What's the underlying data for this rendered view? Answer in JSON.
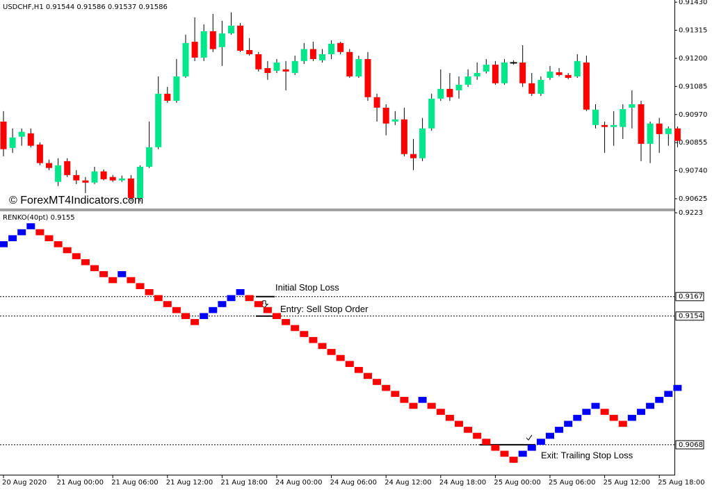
{
  "chart_data": [
    {
      "type": "candlestick",
      "title": "USDCHF,H1  0.91544 0.91586 0.91537 0.91586",
      "watermark": "© ForexMT4Indicators.com",
      "up_color": "#00e68a",
      "down_color": "#ff0000",
      "doji_color": "#000000",
      "grid": false,
      "ylim": [
        0.90585,
        0.91439
      ],
      "yticks": [
        {
          "value": 0.9143,
          "label": "0.91430"
        },
        0.91315,
        {
          "value": 0.912,
          "label": "0.91200"
        },
        0.91085,
        {
          "value": 0.9097,
          "label": "0.90970"
        },
        0.90855,
        {
          "value": 0.9074,
          "label": "0.90740"
        },
        0.90625
      ],
      "categories": [
        "20 Aug 2020",
        null,
        null,
        null,
        null,
        null,
        "21 Aug 00:00",
        null,
        null,
        null,
        null,
        null,
        "21 Aug 06:00",
        null,
        null,
        null,
        null,
        null,
        "21 Aug 12:00",
        null,
        null,
        null,
        null,
        null,
        "21 Aug 18:00",
        null,
        null,
        null,
        null,
        null,
        "24 Aug 00:00",
        null,
        null,
        null,
        null,
        null,
        "24 Aug 06:00",
        null,
        null,
        null,
        null,
        null,
        "24 Aug 12:00",
        null,
        null,
        null,
        null,
        null,
        "24 Aug 18:00",
        null,
        null,
        null,
        null,
        null,
        "25 Aug 00:00",
        null,
        null,
        null,
        null,
        null,
        "25 Aug 06:00",
        null,
        null,
        null,
        null,
        null,
        "25 Aug 12:00",
        null,
        null,
        null,
        null,
        null,
        "25 Aug 18:00",
        null,
        null
      ],
      "open": [
        0.90941,
        0.90833,
        0.90879,
        0.90893,
        0.90847,
        0.90771,
        0.90694,
        0.90779,
        0.90722,
        0.907,
        0.90691,
        0.90737,
        0.90714,
        0.907,
        0.90708,
        0.90628,
        0.90756,
        0.90836,
        0.91055,
        0.91026,
        0.91126,
        0.91268,
        0.91203,
        0.91311,
        0.91246,
        0.91302,
        0.91334,
        0.91234,
        0.91217,
        0.9116,
        0.91149,
        0.91155,
        0.9114,
        0.91189,
        0.91238,
        0.91192,
        0.91217,
        0.91263,
        0.91226,
        0.91126,
        0.91197,
        0.91041,
        0.90998,
        0.90941,
        0.9095,
        0.90808,
        0.90791,
        0.90913,
        0.91035,
        0.91075,
        0.91069,
        0.91092,
        0.91126,
        0.91146,
        0.91174,
        0.91098,
        0.91183,
        0.91183,
        0.91098,
        0.91055,
        0.9112,
        0.91143,
        0.91132,
        0.91126,
        0.91183,
        0.90927,
        0.90927,
        0.90919,
        0.90919,
        0.90998,
        0.91012,
        0.9085,
        0.90933,
        0.9089,
        0.90913
      ],
      "high": [
        0.90984,
        0.90913,
        0.90913,
        0.90913,
        0.90856,
        0.90785,
        0.90791,
        0.90791,
        0.90742,
        0.90714,
        0.90756,
        0.90745,
        0.90722,
        0.9072,
        0.90722,
        0.90762,
        0.90941,
        0.91126,
        0.91083,
        0.91197,
        0.91297,
        0.91368,
        0.91339,
        0.91382,
        0.91354,
        0.91388,
        0.91345,
        0.91283,
        0.91226,
        0.91189,
        0.91197,
        0.91189,
        0.91211,
        0.91263,
        0.91268,
        0.91238,
        0.91274,
        0.91268,
        0.91238,
        0.91211,
        0.91226,
        0.91055,
        0.91012,
        0.90984,
        0.90998,
        0.9087,
        0.90956,
        0.91055,
        0.91155,
        0.9114,
        0.91126,
        0.91155,
        0.91183,
        0.91197,
        0.91189,
        0.91197,
        0.91192,
        0.91254,
        0.9114,
        0.91126,
        0.91169,
        0.9116,
        0.9114,
        0.91217,
        0.91211,
        0.91012,
        0.90941,
        0.90984,
        0.91012,
        0.91069,
        0.91026,
        0.90941,
        0.90956,
        0.90921,
        0.90921
      ],
      "low": [
        0.90799,
        0.90813,
        0.90842,
        0.90836,
        0.90762,
        0.90742,
        0.90677,
        0.90714,
        0.90685,
        0.90648,
        0.90685,
        0.907,
        0.90694,
        0.90694,
        0.90614,
        0.90614,
        0.90751,
        0.90828,
        0.91018,
        0.91018,
        0.9112,
        0.91189,
        0.91189,
        0.91226,
        0.91169,
        0.91297,
        0.91226,
        0.91211,
        0.91146,
        0.91112,
        0.9114,
        0.91069,
        0.91132,
        0.91177,
        0.91189,
        0.91183,
        0.91197,
        0.91217,
        0.9112,
        0.9112,
        0.91026,
        0.90941,
        0.90885,
        0.90927,
        0.90799,
        0.90742,
        0.90779,
        0.90904,
        0.91026,
        0.91026,
        0.91035,
        0.91083,
        0.91112,
        0.91138,
        0.91092,
        0.91092,
        0.91174,
        0.91083,
        0.91046,
        0.91046,
        0.91112,
        0.91126,
        0.91115,
        0.9112,
        0.90984,
        0.90913,
        0.90813,
        0.90842,
        0.9087,
        0.90913,
        0.90779,
        0.90771,
        0.90813,
        0.90842,
        0.90836
      ],
      "close": [
        0.90828,
        0.90876,
        0.90899,
        0.90842,
        0.90771,
        0.90751,
        0.90762,
        0.90722,
        0.907,
        0.90691,
        0.90737,
        0.90705,
        0.907,
        0.90708,
        0.90628,
        0.90756,
        0.90836,
        0.91055,
        0.91026,
        0.91126,
        0.91263,
        0.91203,
        0.91311,
        0.91238,
        0.91302,
        0.91334,
        0.91231,
        0.91217,
        0.91155,
        0.9114,
        0.91183,
        0.91146,
        0.91189,
        0.91238,
        0.91197,
        0.91217,
        0.9126,
        0.91226,
        0.91126,
        0.91197,
        0.91041,
        0.90998,
        0.90933,
        0.9095,
        0.90808,
        0.90791,
        0.90913,
        0.91035,
        0.91075,
        0.91041,
        0.91092,
        0.91126,
        0.9114,
        0.91174,
        0.91098,
        0.91183,
        0.91183,
        0.91098,
        0.91055,
        0.91112,
        0.91146,
        0.91132,
        0.9112,
        0.91189,
        0.9099,
        0.9099,
        0.90919,
        0.90927,
        0.90992,
        0.91012,
        0.9085,
        0.90933,
        0.9089,
        0.90913,
        0.90862
      ]
    },
    {
      "type": "renko",
      "title": "RENKO(40pt) 0.9155",
      "brick_size": 0.0004,
      "up_color": "#0000ff",
      "down_color": "#ff0000",
      "ylim": [
        0.9048,
        0.9224
      ],
      "yticks": [
        0.9223
      ],
      "hlines": [
        0.9167,
        0.9154,
        0.9068
      ],
      "hline_notes": [
        "Initial Stop Loss",
        "Entry: Sell Stop Order",
        "Exit: Trailing Stop Loss"
      ],
      "values": [
        0.9204,
        0.9208,
        0.9212,
        0.9216,
        0.9208,
        0.9204,
        0.92,
        0.9196,
        0.9192,
        0.9188,
        0.9184,
        0.918,
        0.9176,
        0.9184,
        0.9176,
        0.9172,
        0.9168,
        0.9164,
        0.916,
        0.9156,
        0.9152,
        0.9148,
        0.9156,
        0.916,
        0.9164,
        0.9168,
        0.9172,
        0.9164,
        0.916,
        0.9156,
        0.9152,
        0.9148,
        0.9144,
        0.914,
        0.9136,
        0.9132,
        0.9128,
        0.9124,
        0.912,
        0.9116,
        0.9112,
        0.9108,
        0.9104,
        0.91,
        0.9096,
        0.9092,
        0.91,
        0.9092,
        0.9088,
        0.9084,
        0.908,
        0.9076,
        0.9072,
        0.9068,
        0.9064,
        0.906,
        0.9056,
        0.9064,
        0.9068,
        0.9072,
        0.9076,
        0.908,
        0.9084,
        0.9088,
        0.9092,
        0.9096,
        0.9088,
        0.9084,
        0.908,
        0.9088,
        0.9092,
        0.9096,
        0.91,
        0.9104,
        0.9108
      ]
    }
  ]
}
